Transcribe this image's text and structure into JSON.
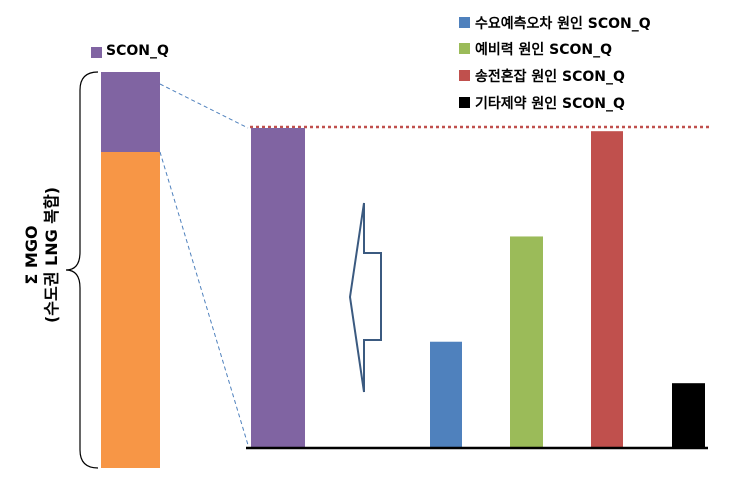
{
  "left_bar": {
    "legend_label": "SCON_Q",
    "top_color": "#8064a2",
    "bottom_color": "#f79646",
    "brace_label_line1": "Σ MGO",
    "brace_label_line2": "(수도권 LNG 복합)"
  },
  "legend": [
    {
      "label": "수요예측오차 원인 SCON_Q",
      "color": "#4f81bd"
    },
    {
      "label": "예비력  원인 SCON_Q",
      "color": "#9bbb59"
    },
    {
      "label": "송전혼잡  원인 SCON_Q",
      "color": "#c0504d"
    },
    {
      "label": "기타제약 원인 SCON_Q",
      "color": "#000000"
    }
  ],
  "chart_data": {
    "type": "bar",
    "bars": [
      {
        "color": "#8064a2",
        "relative_value": 1.0
      },
      {
        "color": "#4f81bd",
        "relative_value": 0.33
      },
      {
        "color": "#9bbb59",
        "relative_value": 0.66
      },
      {
        "color": "#c0504d",
        "relative_value": 0.99
      },
      {
        "color": "#000000",
        "relative_value": 0.2
      }
    ],
    "reference_line_color": "#c0504d"
  }
}
